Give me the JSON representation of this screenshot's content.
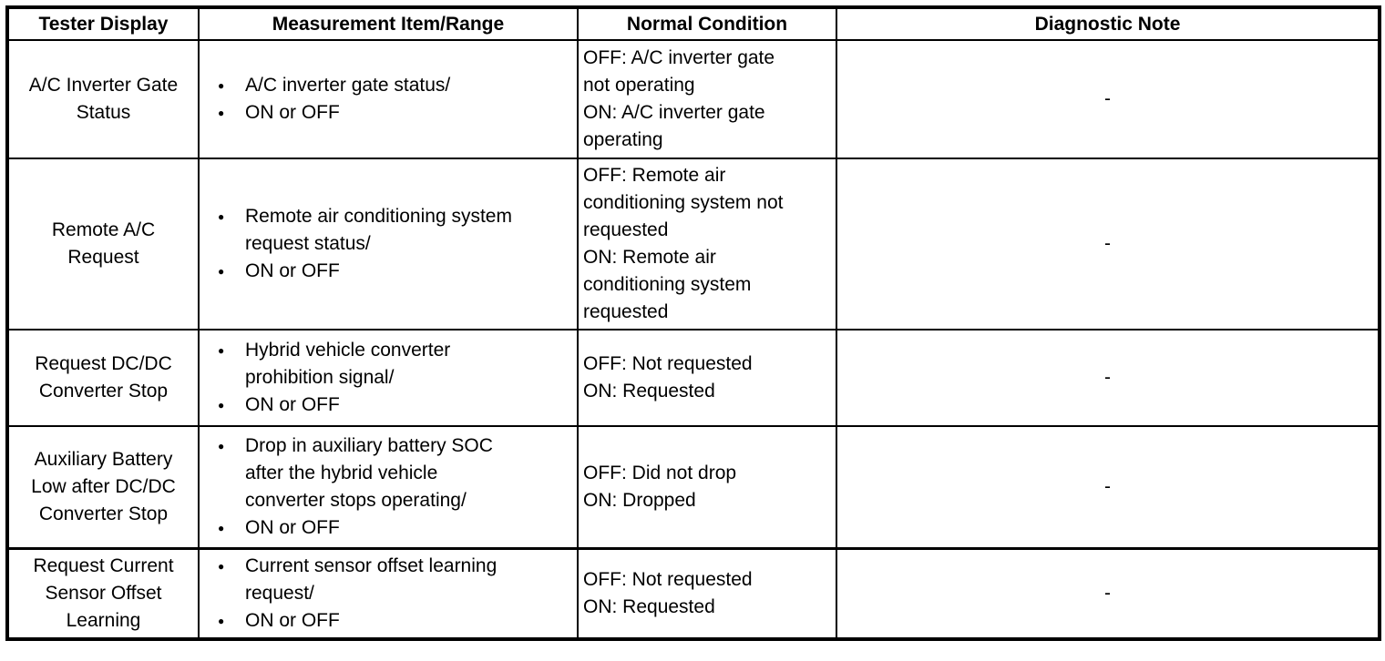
{
  "ui": {
    "bullet_icon": "●",
    "text_color": "#000000",
    "background_color": "#ffffff",
    "border_color": "#000000"
  },
  "table": {
    "headers": [
      "Tester Display",
      "Measurement Item/Range",
      "Normal Condition",
      "Diagnostic Note"
    ],
    "rows": [
      {
        "tester_display": "A/C Inverter Gate\nStatus",
        "measurement_items": [
          "A/C inverter gate status/",
          "ON or OFF"
        ],
        "normal_condition": "OFF: A/C inverter gate\nnot operating\nON: A/C inverter gate\noperating",
        "diagnostic_note": "-"
      },
      {
        "tester_display": "Remote A/C\nRequest",
        "measurement_items": [
          "Remote air conditioning system\nrequest status/",
          "ON or OFF"
        ],
        "normal_condition": "OFF: Remote air\nconditioning system not\nrequested\nON: Remote air\nconditioning system\nrequested",
        "diagnostic_note": "-"
      },
      {
        "tester_display": "Request DC/DC\nConverter Stop",
        "measurement_items": [
          "Hybrid vehicle converter\nprohibition signal/",
          "ON or OFF"
        ],
        "normal_condition": "OFF: Not requested\nON: Requested",
        "diagnostic_note": "-"
      },
      {
        "tester_display": "Auxiliary Battery\nLow after DC/DC\nConverter Stop",
        "measurement_items": [
          "Drop in auxiliary battery SOC\nafter the hybrid vehicle\nconverter stops operating/",
          "ON or OFF"
        ],
        "normal_condition": "OFF: Did not drop\nON: Dropped",
        "diagnostic_note": "-"
      },
      {
        "tester_display": "Request Current\nSensor Offset\nLearning",
        "measurement_items": [
          "Current sensor offset learning\nrequest/",
          "ON or OFF"
        ],
        "normal_condition": "OFF: Not requested\nON: Requested",
        "diagnostic_note": "-"
      }
    ]
  }
}
